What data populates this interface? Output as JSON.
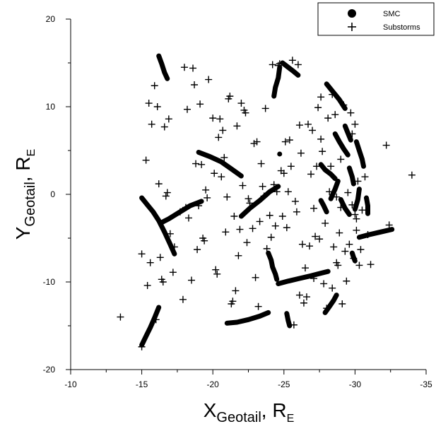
{
  "chart_data": {
    "type": "scatter",
    "xlabel": {
      "main": "X",
      "sub": "Geotail",
      "tail": ", R",
      "tail_sub": "E"
    },
    "ylabel": {
      "main": "Y",
      "sub": "Geotail",
      "tail": ", R",
      "tail_sub": "E"
    },
    "xlim": [
      -10,
      -35
    ],
    "ylim": [
      -20,
      20
    ],
    "x_ticks": [
      -10,
      -15,
      -20,
      -25,
      -30,
      -35
    ],
    "y_ticks": [
      -20,
      -10,
      0,
      10,
      20
    ],
    "grid": false,
    "legend_position": "top-right",
    "series": [
      {
        "name": "SMC",
        "marker": "filled-circle",
        "color": "#000000",
        "tracks": [
          [
            [
              -16.2,
              15.8
            ],
            [
              -16.4,
              14.9
            ],
            [
              -16.6,
              13.9
            ],
            [
              -16.8,
              13.2
            ]
          ],
          [
            [
              -19.0,
              4.8
            ],
            [
              -19.8,
              4.3
            ],
            [
              -20.6,
              3.7
            ],
            [
              -21.3,
              2.9
            ],
            [
              -22.0,
              2.1
            ]
          ],
          [
            [
              -15.0,
              -0.4
            ],
            [
              -15.4,
              -1.2
            ],
            [
              -15.8,
              -2.0
            ],
            [
              -16.2,
              -3.0
            ],
            [
              -16.6,
              -4.3
            ],
            [
              -17.0,
              -5.7
            ],
            [
              -17.3,
              -6.8
            ]
          ],
          [
            [
              -16.3,
              -3.3
            ],
            [
              -16.9,
              -2.8
            ],
            [
              -17.6,
              -2.1
            ],
            [
              -18.4,
              -1.3
            ],
            [
              -19.2,
              -0.8
            ]
          ],
          [
            [
              -22.0,
              -2.5
            ],
            [
              -22.6,
              -1.6
            ],
            [
              -23.3,
              -0.7
            ],
            [
              -24.0,
              0.3
            ],
            [
              -24.6,
              0.9
            ]
          ],
          [
            [
              -23.9,
              -6.7
            ],
            [
              -24.1,
              -7.5
            ],
            [
              -24.2,
              -8.3
            ],
            [
              -24.4,
              -9.1
            ],
            [
              -24.5,
              -9.7
            ]
          ],
          [
            [
              -24.6,
              -10.2
            ],
            [
              -25.3,
              -9.9
            ],
            [
              -26.1,
              -9.6
            ],
            [
              -26.9,
              -9.3
            ],
            [
              -27.6,
              -9.0
            ],
            [
              -28.1,
              -8.8
            ]
          ],
          [
            [
              -21.0,
              -14.7
            ],
            [
              -21.7,
              -14.6
            ],
            [
              -22.5,
              -14.3
            ],
            [
              -23.3,
              -13.9
            ],
            [
              -23.9,
              -13.5
            ]
          ],
          [
            [
              -15.0,
              -17.2
            ],
            [
              -15.3,
              -16.2
            ],
            [
              -15.6,
              -15.2
            ],
            [
              -15.9,
              -14.1
            ],
            [
              -16.2,
              -12.9
            ]
          ],
          [
            [
              -24.9,
              15.0
            ],
            [
              -25.3,
              14.5
            ],
            [
              -25.7,
              14.0
            ],
            [
              -26.0,
              13.6
            ]
          ],
          [
            [
              -24.7,
              14.5
            ],
            [
              -24.6,
              13.3
            ],
            [
              -24.4,
              12.2
            ],
            [
              -24.3,
              11.2
            ]
          ],
          [
            [
              -25.2,
              -13.6
            ],
            [
              -25.3,
              -14.4
            ],
            [
              -25.4,
              -15.0
            ]
          ],
          [
            [
              -27.9,
              -13.5
            ],
            [
              -28.2,
              -12.8
            ],
            [
              -28.5,
              -12.1
            ],
            [
              -28.7,
              -11.5
            ]
          ],
          [
            [
              -28.0,
              12.6
            ],
            [
              -28.4,
              11.8
            ],
            [
              -28.9,
              10.8
            ],
            [
              -29.3,
              9.8
            ]
          ],
          [
            [
              -28.6,
              6.9
            ],
            [
              -28.9,
              6.0
            ],
            [
              -29.2,
              5.2
            ],
            [
              -29.5,
              4.5
            ]
          ],
          [
            [
              -29.3,
              7.8
            ],
            [
              -29.5,
              7.0
            ],
            [
              -29.7,
              6.2
            ]
          ],
          [
            [
              -27.6,
              3.4
            ],
            [
              -27.9,
              2.8
            ],
            [
              -28.3,
              2.3
            ],
            [
              -28.6,
              1.8
            ]
          ],
          [
            [
              -30.1,
              6.0
            ],
            [
              -30.3,
              5.0
            ],
            [
              -30.5,
              4.0
            ],
            [
              -30.6,
              3.2
            ]
          ],
          [
            [
              -29.6,
              3.0
            ],
            [
              -29.8,
              2.0
            ],
            [
              -29.9,
              1.2
            ]
          ],
          [
            [
              -28.8,
              1.5
            ],
            [
              -28.6,
              0.6
            ],
            [
              -28.3,
              -0.5
            ]
          ],
          [
            [
              -30.3,
              0.6
            ],
            [
              -30.2,
              -0.6
            ],
            [
              -30.0,
              -1.7
            ]
          ],
          [
            [
              -29.0,
              -0.6
            ],
            [
              -29.3,
              -1.6
            ],
            [
              -29.6,
              -2.3
            ]
          ],
          [
            [
              -30.8,
              -0.4
            ],
            [
              -30.9,
              -1.3
            ],
            [
              -30.9,
              -2.2
            ]
          ],
          [
            [
              -27.6,
              -0.7
            ],
            [
              -27.8,
              -1.3
            ],
            [
              -28.0,
              -2.0
            ]
          ],
          [
            [
              -30.3,
              -4.9
            ],
            [
              -31.0,
              -4.6
            ],
            [
              -31.8,
              -4.3
            ],
            [
              -32.6,
              -4.0
            ]
          ],
          [
            [
              -29.8,
              -6.7
            ],
            [
              -29.9,
              -7.2
            ],
            [
              -30.0,
              -7.6
            ]
          ],
          [
            [
              -24.7,
              4.6
            ]
          ]
        ]
      },
      {
        "name": "Substorms",
        "marker": "plus",
        "color": "#000000",
        "points": [
          [
            -13.5,
            -14.0
          ],
          [
            -15.0,
            -6.8
          ],
          [
            -15.0,
            -17.4
          ],
          [
            -15.3,
            3.9
          ],
          [
            -15.4,
            -10.4
          ],
          [
            -15.5,
            10.4
          ],
          [
            -15.6,
            -7.8
          ],
          [
            -15.7,
            8.0
          ],
          [
            -15.9,
            12.4
          ],
          [
            -16.0,
            -14.3
          ],
          [
            -16.1,
            10.0
          ],
          [
            -16.2,
            1.2
          ],
          [
            -16.3,
            -7.2
          ],
          [
            -16.4,
            -9.7
          ],
          [
            -16.5,
            -10.0
          ],
          [
            -16.6,
            7.7
          ],
          [
            -16.7,
            -0.2
          ],
          [
            -16.8,
            0.2
          ],
          [
            -16.9,
            8.6
          ],
          [
            -17.0,
            -4.5
          ],
          [
            -17.2,
            -8.9
          ],
          [
            -17.3,
            -6.0
          ],
          [
            -17.7,
            -2.0
          ],
          [
            -17.9,
            -12.0
          ],
          [
            -18.0,
            14.5
          ],
          [
            -18.1,
            -1.5
          ],
          [
            -18.2,
            9.7
          ],
          [
            -18.3,
            -2.7
          ],
          [
            -18.5,
            -9.8
          ],
          [
            -18.6,
            14.4
          ],
          [
            -18.7,
            12.5
          ],
          [
            -18.8,
            3.5
          ],
          [
            -18.9,
            -6.3
          ],
          [
            -19.0,
            -1.3
          ],
          [
            -19.1,
            10.3
          ],
          [
            -19.2,
            3.4
          ],
          [
            -19.3,
            -5.0
          ],
          [
            -19.4,
            -5.3
          ],
          [
            -19.5,
            0.5
          ],
          [
            -19.6,
            -0.4
          ],
          [
            -19.7,
            13.1
          ],
          [
            -20.0,
            8.7
          ],
          [
            -20.1,
            2.4
          ],
          [
            -20.2,
            -8.6
          ],
          [
            -20.3,
            -9.1
          ],
          [
            -20.4,
            6.5
          ],
          [
            -20.5,
            8.6
          ],
          [
            -20.6,
            2.0
          ],
          [
            -20.7,
            7.3
          ],
          [
            -20.8,
            4.2
          ],
          [
            -20.9,
            -4.3
          ],
          [
            -21.0,
            -0.3
          ],
          [
            -21.1,
            10.9
          ],
          [
            -21.2,
            11.2
          ],
          [
            -21.3,
            -12.5
          ],
          [
            -21.4,
            -12.2
          ],
          [
            -21.5,
            -2.5
          ],
          [
            -21.6,
            -11.0
          ],
          [
            -21.7,
            7.8
          ],
          [
            -21.8,
            -7.0
          ],
          [
            -21.9,
            -4.0
          ],
          [
            -22.0,
            10.4
          ],
          [
            -22.1,
            1.0
          ],
          [
            -22.2,
            9.6
          ],
          [
            -22.3,
            9.3
          ],
          [
            -22.4,
            -5.5
          ],
          [
            -22.5,
            -0.5
          ],
          [
            -22.6,
            -1.0
          ],
          [
            -22.8,
            -3.9
          ],
          [
            -22.9,
            5.8
          ],
          [
            -23.0,
            -9.5
          ],
          [
            -23.1,
            6.0
          ],
          [
            -23.2,
            -12.8
          ],
          [
            -23.3,
            -3.1
          ],
          [
            -23.4,
            3.5
          ],
          [
            -23.5,
            0.9
          ],
          [
            -23.6,
            -0.2
          ],
          [
            -23.7,
            9.8
          ],
          [
            -23.8,
            -6.2
          ],
          [
            -24.0,
            -2.4
          ],
          [
            -24.1,
            -4.9
          ],
          [
            -24.2,
            14.8
          ],
          [
            -24.3,
            1.1
          ],
          [
            -24.4,
            -3.6
          ],
          [
            -24.5,
            0.3
          ],
          [
            -24.6,
            14.7
          ],
          [
            -24.8,
            2.7
          ],
          [
            -24.9,
            -2.5
          ],
          [
            -25.0,
            2.4
          ],
          [
            -25.1,
            6.0
          ],
          [
            -25.2,
            -3.8
          ],
          [
            -25.3,
            0.3
          ],
          [
            -25.4,
            6.2
          ],
          [
            -25.5,
            3.2
          ],
          [
            -25.6,
            15.3
          ],
          [
            -25.7,
            -14.9
          ],
          [
            -25.8,
            -0.8
          ],
          [
            -25.9,
            -2.0
          ],
          [
            -26.0,
            14.8
          ],
          [
            -26.1,
            -11.5
          ],
          [
            -26.2,
            4.7
          ],
          [
            -26.3,
            -5.7
          ],
          [
            -26.4,
            -12.4
          ],
          [
            -26.5,
            -8.4
          ],
          [
            -26.6,
            -11.7
          ],
          [
            -26.7,
            8.0
          ],
          [
            -26.8,
            -5.9
          ],
          [
            -26.9,
            2.3
          ],
          [
            -27.0,
            7.3
          ],
          [
            -27.1,
            -1.6
          ],
          [
            -27.2,
            -4.8
          ],
          [
            -27.3,
            3.2
          ],
          [
            -27.4,
            9.9
          ],
          [
            -27.5,
            -5.1
          ],
          [
            -27.6,
            11.1
          ],
          [
            -27.7,
            4.9
          ],
          [
            -27.8,
            -10.2
          ],
          [
            -27.9,
            -3.3
          ],
          [
            -28.0,
            -13.0
          ],
          [
            -28.1,
            8.7
          ],
          [
            -28.2,
            0.3
          ],
          [
            -28.3,
            3.2
          ],
          [
            -28.4,
            -10.7
          ],
          [
            -28.5,
            -6.0
          ],
          [
            -28.6,
            9.1
          ],
          [
            -28.7,
            -0.3
          ],
          [
            -28.8,
            -8.1
          ],
          [
            -28.9,
            -4.4
          ],
          [
            -29.0,
            -1.5
          ],
          [
            -29.1,
            -12.5
          ],
          [
            -29.2,
            10.2
          ],
          [
            -29.3,
            -6.5
          ],
          [
            -29.4,
            -9.9
          ],
          [
            -29.5,
            0.2
          ],
          [
            -29.6,
            -5.7
          ],
          [
            -29.7,
            9.3
          ],
          [
            -29.8,
            -1.2
          ],
          [
            -29.9,
            -7.3
          ],
          [
            -30.0,
            -2.3
          ],
          [
            -30.1,
            -4.1
          ],
          [
            -30.2,
            1.5
          ],
          [
            -30.3,
            -8.1
          ],
          [
            -30.5,
            -1.8
          ],
          [
            -30.7,
            2.0
          ],
          [
            -30.9,
            -4.6
          ],
          [
            -31.1,
            -8.0
          ],
          [
            -30.4,
            -6.3
          ],
          [
            -28.7,
            -7.8
          ],
          [
            -27.1,
            -9.6
          ],
          [
            -32.2,
            5.6
          ],
          [
            -32.4,
            -3.5
          ],
          [
            -34.0,
            2.2
          ],
          [
            -24.7,
            14.9
          ],
          [
            -26.1,
            7.9
          ],
          [
            -27.6,
            6.3
          ],
          [
            -28.4,
            11.4
          ],
          [
            -29.0,
            4.0
          ],
          [
            -29.8,
            6.9
          ],
          [
            -30.1,
            -2.8
          ],
          [
            -30.0,
            8.0
          ]
        ]
      }
    ]
  }
}
